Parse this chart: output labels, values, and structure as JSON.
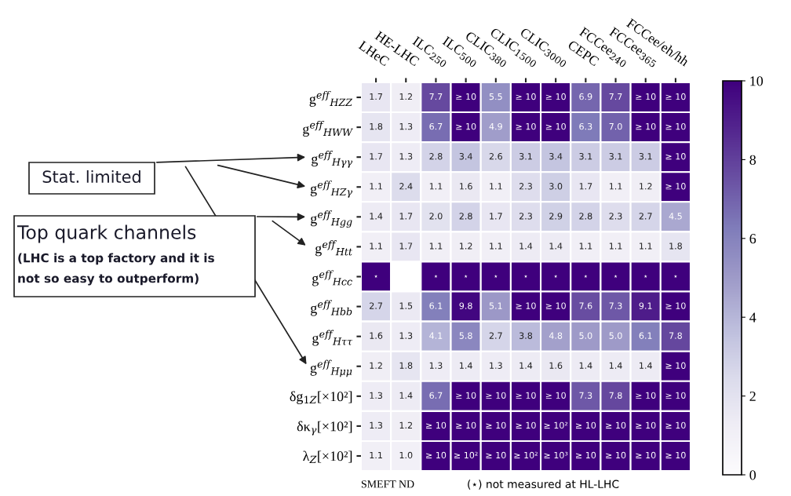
{
  "chart_data": {
    "type": "heatmap",
    "categories": [
      "LHeC",
      "HE-LHC",
      "ILC$_{250}$",
      "ILC$_{500}$",
      "CLIC$_{380}$",
      "CLIC$_{1500}$",
      "CLIC$_{3000}$",
      "CEPC",
      "FCCee$_{240}$",
      "FCCee$_{365}$",
      "FCCee/eh/hh"
    ],
    "y_categories": [
      "g$^{eff}$$_{HZZ}$",
      "g$^{eff}$$_{HWW}$",
      "g$^{eff}$$_{Hγγ}$",
      "g$^{eff}$$_{HZγ}$",
      "g$^{eff}$$_{Hgg}$",
      "g$^{eff}$$_{Htt}$",
      "g$^{eff}$$_{Hcc}$",
      "g$^{eff}$$_{Hbb}$",
      "g$^{eff}$$_{Hττ}$",
      "g$^{eff}$$_{Hμμ}$",
      "δg$_{1Z}$[×10²]",
      "δκ$_{γ}$[×10²]",
      "λ$_{Z}$[×10²]"
    ],
    "cells": [
      [
        1.7,
        1.2,
        7.7,
        10,
        5.5,
        10,
        10,
        6.9,
        7.7,
        10,
        10
      ],
      [
        1.8,
        1.3,
        6.7,
        10,
        4.9,
        10,
        10,
        6.3,
        7.0,
        10,
        10
      ],
      [
        1.7,
        1.3,
        2.8,
        3.4,
        2.6,
        3.1,
        3.4,
        3.1,
        3.1,
        3.1,
        10
      ],
      [
        1.1,
        2.4,
        1.1,
        1.6,
        1.1,
        2.3,
        3.0,
        1.7,
        1.1,
        1.2,
        10
      ],
      [
        1.4,
        1.7,
        2.0,
        2.8,
        1.7,
        2.3,
        2.9,
        2.8,
        2.3,
        2.7,
        4.5
      ],
      [
        1.1,
        1.7,
        1.1,
        1.2,
        1.1,
        1.4,
        1.4,
        1.1,
        1.1,
        1.1,
        1.8
      ],
      [
        10,
        null,
        10,
        10,
        10,
        10,
        10,
        10,
        10,
        10,
        10
      ],
      [
        2.7,
        1.5,
        6.1,
        9.8,
        5.1,
        10,
        10,
        7.6,
        7.3,
        9.1,
        10
      ],
      [
        1.6,
        1.3,
        4.1,
        5.8,
        2.7,
        3.8,
        4.8,
        5.0,
        5.0,
        6.1,
        7.8
      ],
      [
        1.2,
        1.8,
        1.3,
        1.4,
        1.3,
        1.4,
        1.6,
        1.4,
        1.4,
        1.4,
        10
      ],
      [
        1.3,
        1.4,
        6.7,
        10,
        10,
        10,
        10,
        7.3,
        7.8,
        10,
        10
      ],
      [
        1.3,
        1.2,
        10,
        10,
        10,
        10,
        100,
        10,
        10,
        10,
        10
      ],
      [
        1.1,
        1.0,
        10,
        100,
        10,
        100,
        1000,
        10,
        10,
        10,
        10
      ]
    ],
    "cell_labels": [
      [
        "1.7",
        "1.2",
        "7.7",
        "≥ 10",
        "5.5",
        "≥ 10",
        "≥ 10",
        "6.9",
        "7.7",
        "≥ 10",
        "≥ 10"
      ],
      [
        "1.8",
        "1.3",
        "6.7",
        "≥ 10",
        "4.9",
        "≥ 10",
        "≥ 10",
        "6.3",
        "7.0",
        "≥ 10",
        "≥ 10"
      ],
      [
        "1.7",
        "1.3",
        "2.8",
        "3.4",
        "2.6",
        "3.1",
        "3.4",
        "3.1",
        "3.1",
        "3.1",
        "≥ 10"
      ],
      [
        "1.1",
        "2.4",
        "1.1",
        "1.6",
        "1.1",
        "2.3",
        "3.0",
        "1.7",
        "1.1",
        "1.2",
        "≥ 10"
      ],
      [
        "1.4",
        "1.7",
        "2.0",
        "2.8",
        "1.7",
        "2.3",
        "2.9",
        "2.8",
        "2.3",
        "2.7",
        "4.5"
      ],
      [
        "1.1",
        "1.7",
        "1.1",
        "1.2",
        "1.1",
        "1.4",
        "1.4",
        "1.1",
        "1.1",
        "1.1",
        "1.8"
      ],
      [
        "⋆",
        null,
        "⋆",
        "⋆",
        "⋆",
        "⋆",
        "⋆",
        "⋆",
        "⋆",
        "⋆",
        "⋆"
      ],
      [
        "2.7",
        "1.5",
        "6.1",
        "9.8",
        "5.1",
        "≥ 10",
        "≥ 10",
        "7.6",
        "7.3",
        "9.1",
        "≥ 10"
      ],
      [
        "1.6",
        "1.3",
        "4.1",
        "5.8",
        "2.7",
        "3.8",
        "4.8",
        "5.0",
        "5.0",
        "6.1",
        "7.8"
      ],
      [
        "1.2",
        "1.8",
        "1.3",
        "1.4",
        "1.3",
        "1.4",
        "1.6",
        "1.4",
        "1.4",
        "1.4",
        "≥ 10"
      ],
      [
        "1.3",
        "1.4",
        "6.7",
        "≥ 10",
        "≥ 10",
        "≥ 10",
        "≥ 10",
        "7.3",
        "7.8",
        "≥ 10",
        "≥ 10"
      ],
      [
        "1.3",
        "1.2",
        "≥ 10",
        "≥ 10",
        "≥ 10",
        "≥ 10",
        "≥ 10²",
        "≥ 10",
        "≥ 10",
        "≥ 10",
        "≥ 10"
      ],
      [
        "1.1",
        "1.0",
        "≥ 10",
        "≥ 10²",
        "≥ 10",
        "≥ 10²",
        "≥ 10³",
        "≥ 10",
        "≥ 10",
        "≥ 10",
        "≥ 10"
      ]
    ],
    "clim": [
      0,
      10
    ],
    "cticks": [
      0,
      2,
      4,
      6,
      8,
      10
    ],
    "annotations": [
      "SMEFT ND",
      "(⋆) not measured at HL-LHC",
      "Stat. limited",
      "Top quark channels",
      "(LHC is a top factory and it is",
      "not so easy to outperform)"
    ]
  }
}
